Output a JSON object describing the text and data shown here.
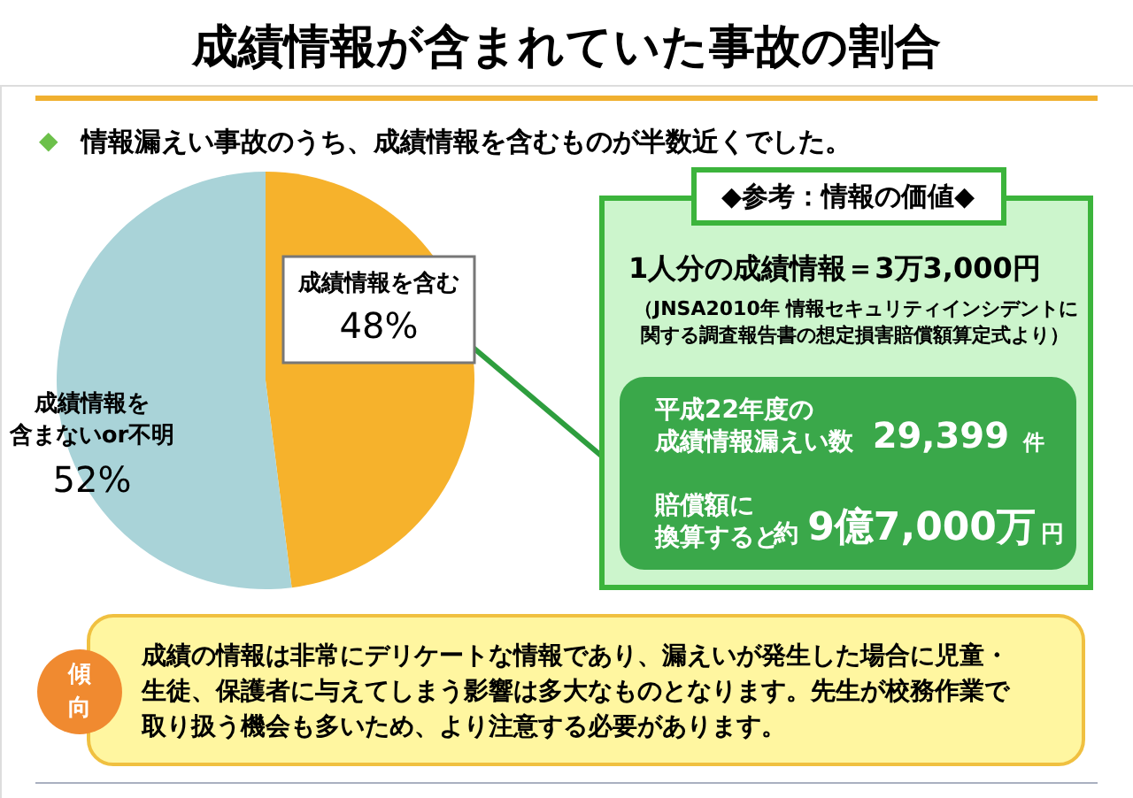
{
  "chart_data": {
    "type": "pie",
    "title": "成績情報が含まれていた事故の割合",
    "subtitle": "情報漏えい事故のうち、成績情報を含むものが半数近くでした。",
    "categories": [
      "成績情報を含む",
      "成績情報を含まないor不明"
    ],
    "values": [
      48,
      52
    ],
    "value_labels": [
      "48%",
      "52%"
    ],
    "colors": [
      "#f6b22c",
      "#a9d3d8"
    ],
    "annotations": [
      "◆参考：情報の価値◆",
      "1人分の成績情報＝3万3,000円",
      "（JNSA2010年 情報セキュリティインシデントに",
      "関する調査報告書の想定損害賠償額算定式より）",
      "平成22年度の",
      "成績情報漏えい数",
      "29,399",
      "件",
      "賠償額に",
      "換算すると",
      "約",
      "9億7,000万",
      "円",
      "傾",
      "向",
      "成績の情報は非常にデリケートな情報であり、漏えいが発生した場合に児童・",
      "生徒、保護者に与えてしまう影響は多大なものとなります。先生が校務作業で",
      "取り扱う機会も多いため、より注意する必要があります。",
      "◆"
    ]
  }
}
